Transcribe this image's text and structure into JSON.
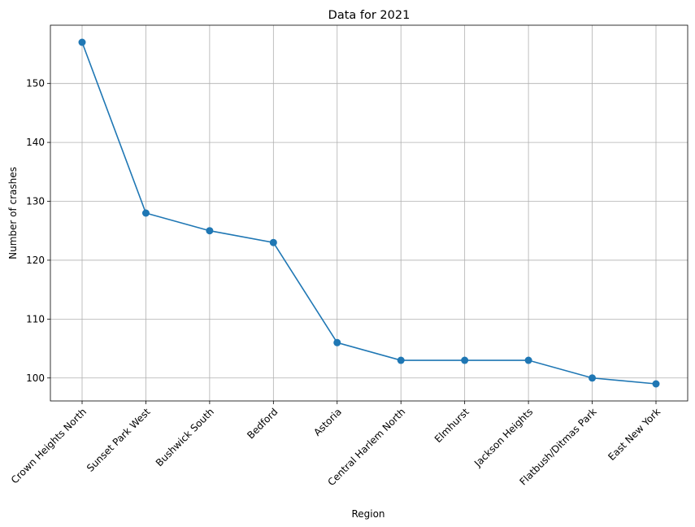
{
  "chart_data": {
    "type": "line",
    "title": "Data for 2021",
    "xlabel": "Region",
    "ylabel": "Number of crashes",
    "categories": [
      "Crown Heights North",
      "Sunset Park West",
      "Bushwick South",
      "Bedford",
      "Astoria",
      "Central Harlem North",
      "Elmhurst",
      "Jackson Heights",
      "Flatbush/Ditmas Park",
      "East New York"
    ],
    "series": [
      {
        "values": [
          157,
          128,
          125,
          123,
          106,
          103,
          103,
          103,
          100,
          99
        ],
        "color": "#1f77b4",
        "marker": "circle"
      }
    ],
    "yticks": [
      "100",
      "110",
      "120",
      "130",
      "140",
      "150"
    ],
    "ylim": [
      96.1,
      159.9
    ],
    "grid": true,
    "x_tick_rotation": 45
  }
}
